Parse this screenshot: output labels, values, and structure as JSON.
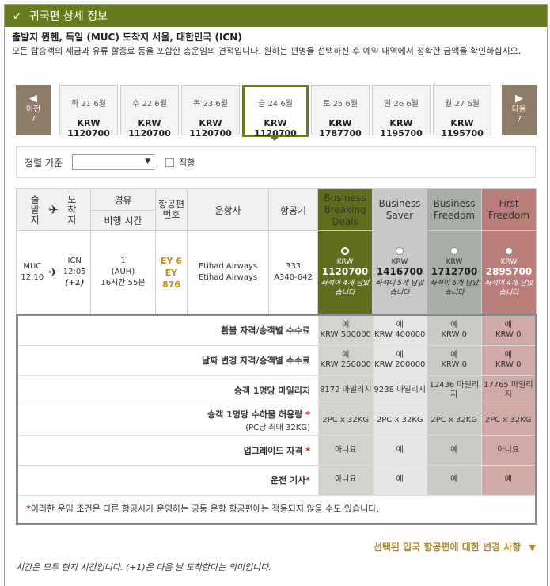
{
  "header": {
    "title": "귀국편 상세 정보",
    "icon": "collapse-arrow-icon"
  },
  "route": "출발지 뮌헨, 독일 (MUC) 도착지 서울, 대한민국 (ICN)",
  "note": "모든 탑승객의 세금과 유류 할증료 등을 포함한 총운임의 견적입니다. 원하는 편명을 선택하신 후 예약 내역에서 정확한 금액을 확인하십시오.",
  "nav": {
    "prev": "이전",
    "prev_count": "7",
    "next": "다음",
    "next_count": "7"
  },
  "dates": [
    {
      "day": "화 21 6월",
      "price": "KRW 1120700"
    },
    {
      "day": "수 22 6월",
      "price": "KRW 1120700"
    },
    {
      "day": "목 23 6월",
      "price": "KRW 1120700"
    },
    {
      "day": "금 24 6월",
      "price": "KRW 1120700",
      "selected": true
    },
    {
      "day": "토 25 6월",
      "price": "KRW 1787700"
    },
    {
      "day": "일 26 6월",
      "price": "KRW 1195700"
    },
    {
      "day": "월 27 6월",
      "price": "KRW 1195700"
    }
  ],
  "sort": {
    "label": "정렬 기준",
    "value": "",
    "direct_label": "직항"
  },
  "table": {
    "headers": {
      "dep": "출발지",
      "arr": "도착지",
      "via": "경유",
      "time": "비행 시간",
      "flight": "항공편 번호",
      "carrier": "운항사",
      "aircraft": "항공기",
      "f1": "Business Breaking Deals",
      "f2": "Business Saver",
      "f3": "Business Freedom",
      "f4": "First Freedom"
    },
    "row": {
      "dep_code": "MUC",
      "dep_time": "12:10",
      "arr_code": "ICN",
      "arr_time": "12:05",
      "arr_plus": "(+1)",
      "stops": "1",
      "stop_code": "(AUH)",
      "duration": "16시간 55분",
      "flight1": "EY 6",
      "flight2": "EY 876",
      "carrier1": "Etihad Airways",
      "carrier2": "Etihad Airways",
      "aircraft1": "333",
      "aircraft2": "A340-642",
      "fares": [
        {
          "cur": "KRW",
          "amt": "1120700",
          "seats": "좌석이 4개 남았습니다"
        },
        {
          "cur": "KRW",
          "amt": "1416700",
          "seats": "좌석이 5개 남았습니다"
        },
        {
          "cur": "KRW",
          "amt": "1712700",
          "seats": "좌석이 6개 남았습니다"
        },
        {
          "cur": "KRW",
          "amt": "2895700",
          "seats": "좌석이 4개 남았습니다"
        }
      ]
    }
  },
  "conditions": {
    "refund": {
      "label": "환불 자격/승객별 수수료",
      "v": [
        [
          "예",
          "KRW 500000"
        ],
        [
          "예",
          "KRW 400000"
        ],
        [
          "예",
          "KRW 0"
        ],
        [
          "예",
          "KRW 0"
        ]
      ]
    },
    "change": {
      "label": "날짜 변경 자격/승객별 수수료",
      "v": [
        [
          "예",
          "KRW 250000"
        ],
        [
          "예",
          "KRW 200000"
        ],
        [
          "예",
          "KRW 0"
        ],
        [
          "예",
          "KRW 0"
        ]
      ]
    },
    "miles": {
      "label": "승객 1명당 마일리지",
      "v": [
        "8172 마일리지",
        "9238 마일리지",
        "12436 마일리지",
        "17765 마일리지"
      ]
    },
    "baggage": {
      "label": "승객 1명당 수하물 허용량",
      "sub": "(PC당 최대 32KG)",
      "v": [
        "2PC x 32KG",
        "2PC x 32KG",
        "2PC x 32KG",
        "2PC x 32KG"
      ]
    },
    "upgrade": {
      "label": "업그레이드 자격",
      "v": [
        "아니요",
        "예",
        "예",
        "아니요"
      ]
    },
    "chauffeur": {
      "label": "운전 기사",
      "v": [
        "아니요",
        "예",
        "예",
        "예"
      ]
    },
    "footnote": "이러한 운임 조건은 다른 항공사가 운영하는 공동 운항 항공편에는 적용되지 않을 수도 있습니다."
  },
  "changes_link": "선택된 입국 항공편에 대한 변경 사항",
  "time_note": "시간은 모두 현지 시간입니다. (+1)은 다음 날 도착한다는 의미입니다."
}
